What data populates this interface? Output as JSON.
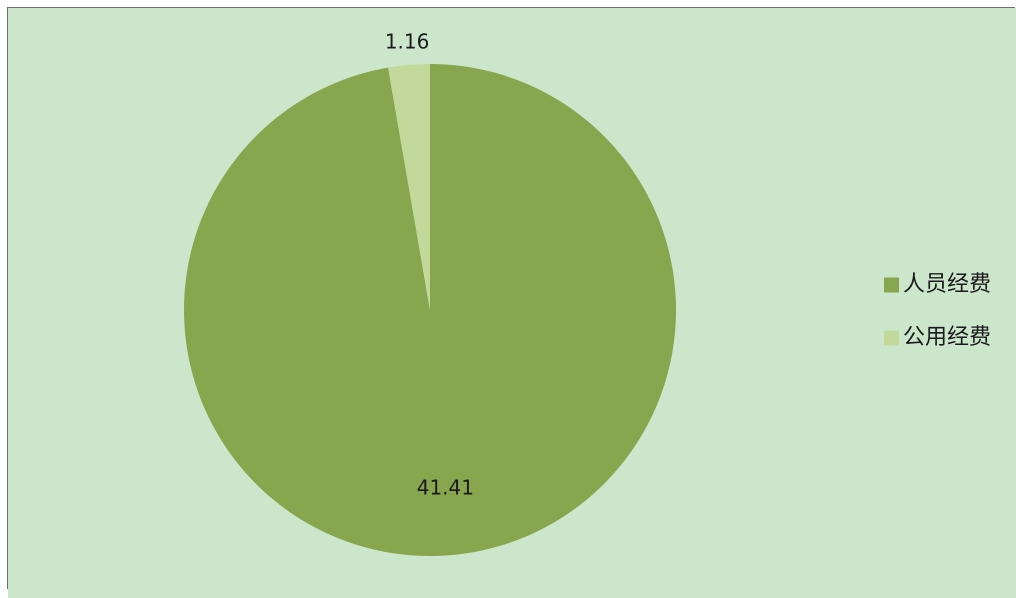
{
  "colors": {
    "background": "#cce6cc",
    "border": "#6e6e6e"
  },
  "chart_data": {
    "type": "pie",
    "title": "",
    "categories": [
      "人员经费",
      "公用经费"
    ],
    "values": [
      41.41,
      1.16
    ],
    "colors": [
      "#88a64e",
      "#c3d99b"
    ],
    "data_labels": [
      "41.41",
      "1.16"
    ],
    "legend": {
      "position": "right",
      "entries": [
        "人员经费",
        "公用经费"
      ]
    }
  }
}
